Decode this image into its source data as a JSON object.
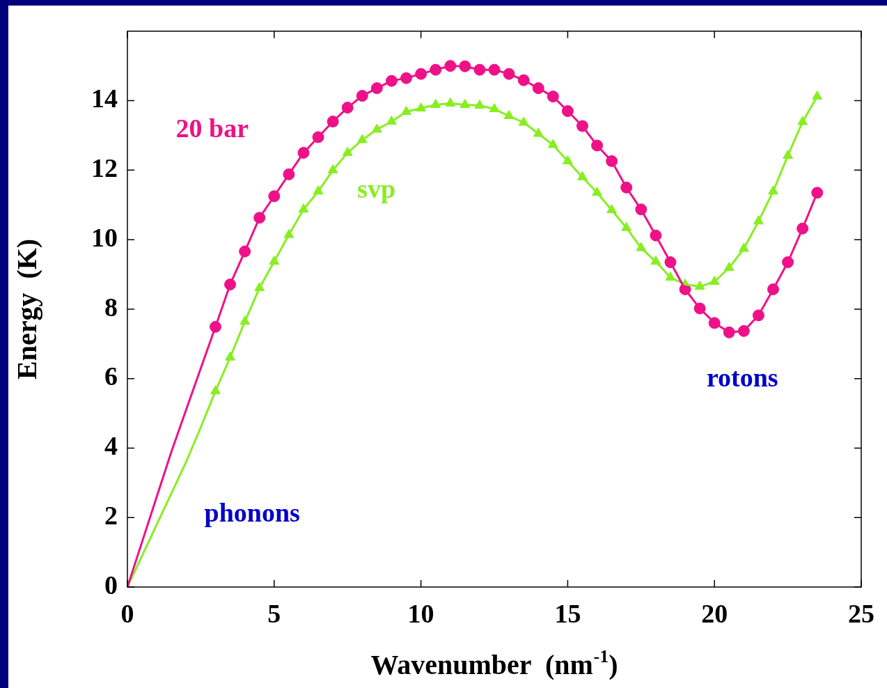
{
  "chart_data": {
    "type": "line",
    "xlabel": "Wavenumber  (nm$^{-1}$)",
    "ylabel": "Energy  (K)",
    "xlim": [
      0,
      25
    ],
    "ylim": [
      0,
      16
    ],
    "xticks": [
      0,
      5,
      10,
      15,
      20,
      25
    ],
    "yticks": [
      0,
      2,
      4,
      6,
      8,
      10,
      12,
      14
    ],
    "series": [
      {
        "color": "#ee1188",
        "marker": "none",
        "x": [
          0,
          0.5,
          1,
          1.5,
          2,
          2.5,
          3,
          3.5,
          4,
          4.5,
          5,
          5.5,
          6,
          6.5,
          7,
          7.5,
          8,
          8.5,
          9,
          9.5,
          10,
          10.5,
          11,
          11.5,
          12,
          12.5,
          13,
          13.5,
          14,
          14.5,
          15,
          15.5,
          16,
          16.5,
          17,
          17.5,
          18,
          18.5,
          19,
          19.5,
          20,
          20.5,
          21,
          21.5,
          22,
          22.5,
          23,
          23.5
        ],
        "values": [
          0,
          1.3,
          2.6,
          3.9,
          5.1,
          6.3,
          7.49,
          8.71,
          9.66,
          10.63,
          11.25,
          11.88,
          12.5,
          12.95,
          13.4,
          13.8,
          14.14,
          14.36,
          14.57,
          14.65,
          14.77,
          14.89,
          15.0,
          14.99,
          14.89,
          14.89,
          14.77,
          14.59,
          14.36,
          14.12,
          13.7,
          13.27,
          12.71,
          12.26,
          11.5,
          10.87,
          10.12,
          9.35,
          8.57,
          8.02,
          7.6,
          7.33,
          7.37,
          7.82,
          8.57,
          9.35,
          10.32,
          11.35
        ]
      },
      {
        "color": "#88ee22",
        "marker": "none",
        "x": [
          0,
          0.5,
          1,
          1.5,
          2,
          2.5,
          3,
          3.5,
          4,
          4.5,
          5,
          5.5,
          6,
          6.5,
          7,
          7.5,
          8,
          8.5,
          9,
          9.5,
          10,
          10.5,
          11,
          11.5,
          12,
          12.5,
          13,
          13.5,
          14,
          14.5,
          15,
          15.5,
          16,
          16.5,
          17,
          17.5,
          18,
          18.5,
          19,
          19.5,
          20,
          20.5,
          21,
          21.5,
          22,
          22.5,
          23,
          23.5
        ],
        "values": [
          0,
          0.9,
          1.8,
          2.7,
          3.6,
          4.6,
          5.64,
          6.61,
          7.64,
          8.61,
          9.37,
          10.14,
          10.87,
          11.39,
          12.0,
          12.5,
          12.87,
          13.17,
          13.4,
          13.68,
          13.78,
          13.88,
          13.92,
          13.88,
          13.86,
          13.76,
          13.56,
          13.37,
          13.05,
          12.73,
          12.26,
          11.8,
          11.35,
          10.85,
          10.34,
          9.76,
          9.37,
          8.91,
          8.71,
          8.65,
          8.79,
          9.19,
          9.74,
          10.53,
          11.39,
          12.42,
          13.39,
          14.12
        ]
      },
      {
        "type": "scatter",
        "name": "20 bar",
        "color": "#ee1188",
        "marker": "circle",
        "x": [
          3,
          3.5,
          4,
          4.5,
          5,
          5.5,
          6,
          6.5,
          7,
          7.5,
          8,
          8.5,
          9,
          9.5,
          10,
          10.5,
          11,
          11.5,
          12,
          12.5,
          13,
          13.5,
          14,
          14.5,
          15,
          15.5,
          16,
          16.5,
          17,
          17.5,
          18,
          18.5,
          19,
          19.5,
          20,
          20.5,
          21,
          21.5,
          22,
          22.5,
          23,
          23.5
        ],
        "values": [
          7.49,
          8.71,
          9.66,
          10.63,
          11.25,
          11.88,
          12.5,
          12.95,
          13.4,
          13.8,
          14.14,
          14.36,
          14.57,
          14.65,
          14.77,
          14.89,
          15.0,
          14.99,
          14.89,
          14.89,
          14.77,
          14.59,
          14.36,
          14.12,
          13.7,
          13.27,
          12.71,
          12.26,
          11.5,
          10.87,
          10.12,
          9.35,
          8.57,
          8.02,
          7.6,
          7.33,
          7.37,
          7.82,
          8.57,
          9.35,
          10.32,
          11.35
        ]
      },
      {
        "type": "scatter",
        "name": "svp",
        "color": "#88ee22",
        "marker": "triangle",
        "x": [
          3,
          3.5,
          4,
          4.5,
          5,
          5.5,
          6,
          6.5,
          7,
          7.5,
          8,
          8.5,
          9,
          9.5,
          10,
          10.5,
          11,
          11.5,
          12,
          12.5,
          13,
          13.5,
          14,
          14.5,
          15,
          15.5,
          16,
          16.5,
          17,
          17.5,
          18,
          18.5,
          19,
          19.5,
          20,
          20.5,
          21,
          21.5,
          22,
          22.5,
          23,
          23.5
        ],
        "values": [
          5.64,
          6.61,
          7.64,
          8.61,
          9.37,
          10.14,
          10.87,
          11.39,
          12.0,
          12.5,
          12.87,
          13.17,
          13.4,
          13.68,
          13.78,
          13.88,
          13.92,
          13.88,
          13.86,
          13.76,
          13.56,
          13.37,
          13.05,
          12.73,
          12.26,
          11.8,
          11.35,
          10.85,
          10.34,
          9.76,
          9.37,
          8.91,
          8.71,
          8.65,
          8.79,
          9.19,
          9.74,
          10.53,
          11.39,
          12.42,
          13.39,
          14.12
        ]
      }
    ],
    "annotations": [
      "phonons",
      "rotons"
    ],
    "legend": false
  }
}
